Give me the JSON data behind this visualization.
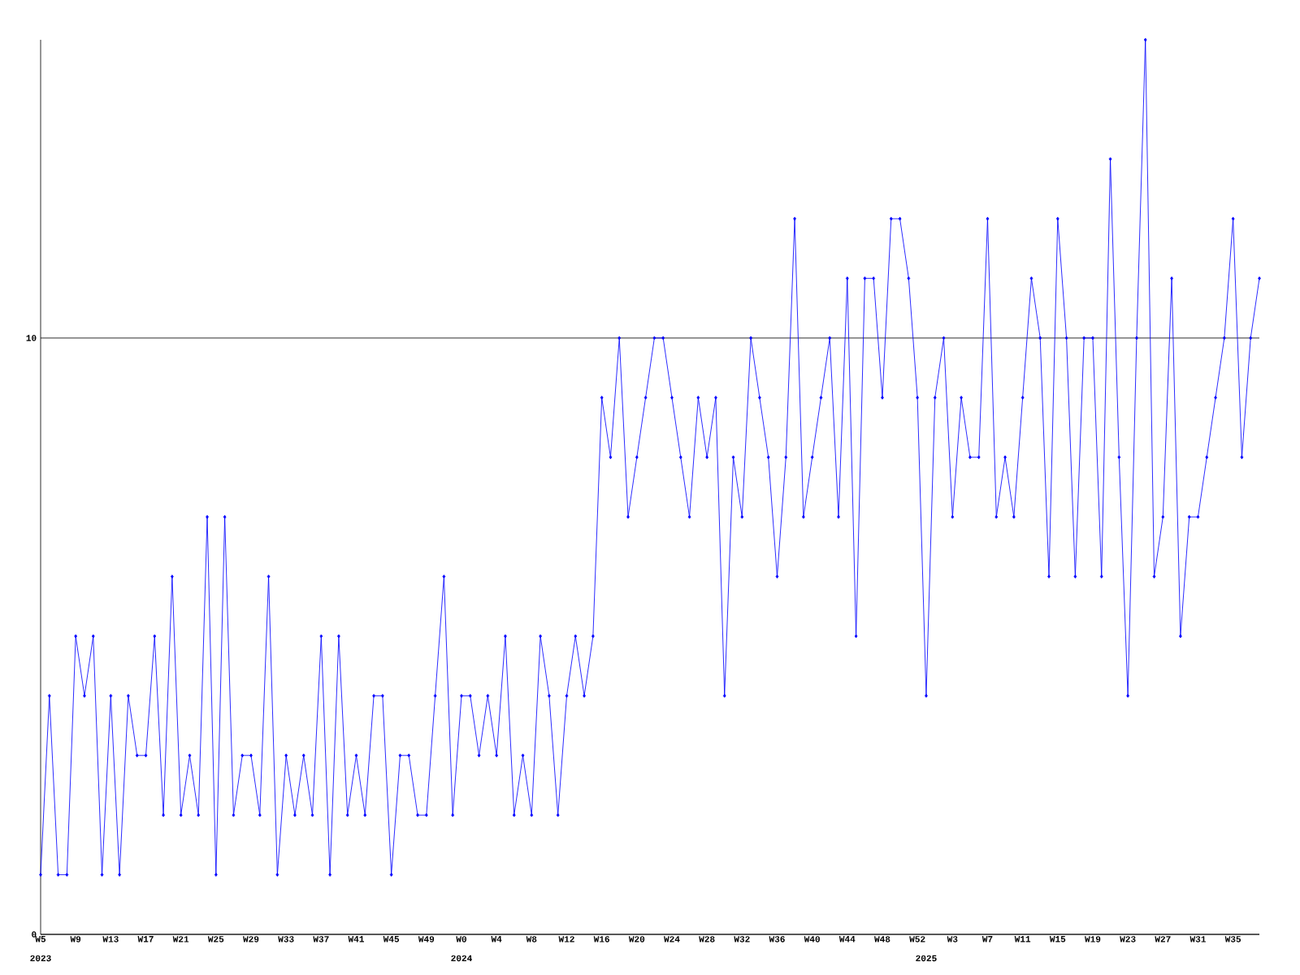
{
  "chart_data": {
    "type": "line",
    "categories": [
      "W5",
      null,
      null,
      null,
      "W9",
      null,
      null,
      null,
      "W13",
      null,
      null,
      null,
      "W17",
      null,
      null,
      null,
      "W21",
      null,
      null,
      null,
      "W25",
      null,
      null,
      null,
      "W29",
      null,
      null,
      null,
      "W33",
      null,
      null,
      null,
      "W37",
      null,
      null,
      null,
      "W41",
      null,
      null,
      null,
      "W45",
      null,
      null,
      null,
      "W49",
      null,
      null,
      null,
      "W0",
      null,
      null,
      null,
      "W4",
      null,
      null,
      null,
      "W8",
      null,
      null,
      null,
      "W12",
      null,
      null,
      null,
      "W16",
      null,
      null,
      null,
      "W20",
      null,
      null,
      null,
      "W24",
      null,
      null,
      null,
      "W28",
      null,
      null,
      null,
      "W32",
      null,
      null,
      null,
      "W36",
      null,
      null,
      null,
      "W40",
      null,
      null,
      null,
      "W44",
      null,
      null,
      null,
      "W48",
      null,
      null,
      null,
      "W52",
      null,
      null,
      null,
      "W3",
      null,
      null,
      null,
      "W7",
      null,
      null,
      null,
      "W11",
      null,
      null,
      null,
      "W15",
      null,
      null,
      null,
      "W19",
      null,
      null,
      null,
      "W23",
      null,
      null,
      null,
      "W27",
      null,
      null,
      null,
      "W31",
      null,
      null,
      null,
      "W35",
      null,
      null,
      null
    ],
    "series": [
      {
        "color": "#0000ff",
        "values": [
          1,
          4,
          1,
          1,
          5,
          4,
          5,
          1,
          4,
          1,
          4,
          3,
          3,
          5,
          2,
          6,
          2,
          3,
          2,
          7,
          1,
          7,
          2,
          3,
          3,
          2,
          6,
          1,
          3,
          2,
          3,
          2,
          5,
          1,
          5,
          2,
          3,
          2,
          4,
          4,
          1,
          3,
          3,
          2,
          2,
          4,
          6,
          2,
          4,
          4,
          3,
          4,
          3,
          5,
          2,
          3,
          2,
          5,
          4,
          2,
          4,
          5,
          4,
          5,
          9,
          8,
          10,
          7,
          8,
          9,
          10,
          10,
          9,
          8,
          7,
          9,
          8,
          9,
          4,
          8,
          7,
          10,
          9,
          8,
          6,
          8,
          12,
          7,
          8,
          9,
          10,
          7,
          11,
          5,
          11,
          11,
          9,
          12,
          12,
          11,
          9,
          4,
          9,
          10,
          7,
          9,
          8,
          8,
          12,
          7,
          8,
          7,
          9,
          11,
          10,
          6,
          12,
          10,
          6,
          10,
          10,
          6,
          13,
          8,
          4,
          10,
          15,
          6,
          7,
          11,
          5,
          7,
          7,
          8,
          9,
          10,
          12,
          8,
          10,
          11
        ]
      }
    ],
    "ylim": [
      0,
      15
    ],
    "yticks": [
      0,
      10
    ],
    "grid": "y",
    "marker": "diamond",
    "line_style": "solid",
    "annotations": [
      "2023",
      "2024",
      "2025"
    ]
  }
}
